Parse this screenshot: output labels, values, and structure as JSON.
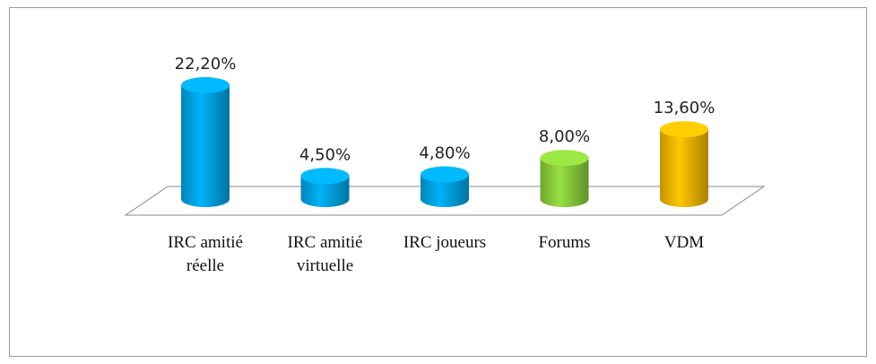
{
  "chart_data": {
    "type": "bar3d",
    "categories": [
      "IRC amitié réelle",
      "IRC amitié virtuelle",
      "IRC joueurs",
      "Forums",
      "VDM"
    ],
    "values": [
      22.2,
      4.5,
      4.8,
      8.0,
      13.6
    ],
    "value_labels": [
      "22,20%",
      "4,50%",
      "4,80%",
      "8,00%",
      "13,60%"
    ],
    "colors": [
      "#00a6e6",
      "#00a6e6",
      "#00a6e6",
      "#8ccf3c",
      "#f5b800"
    ]
  }
}
